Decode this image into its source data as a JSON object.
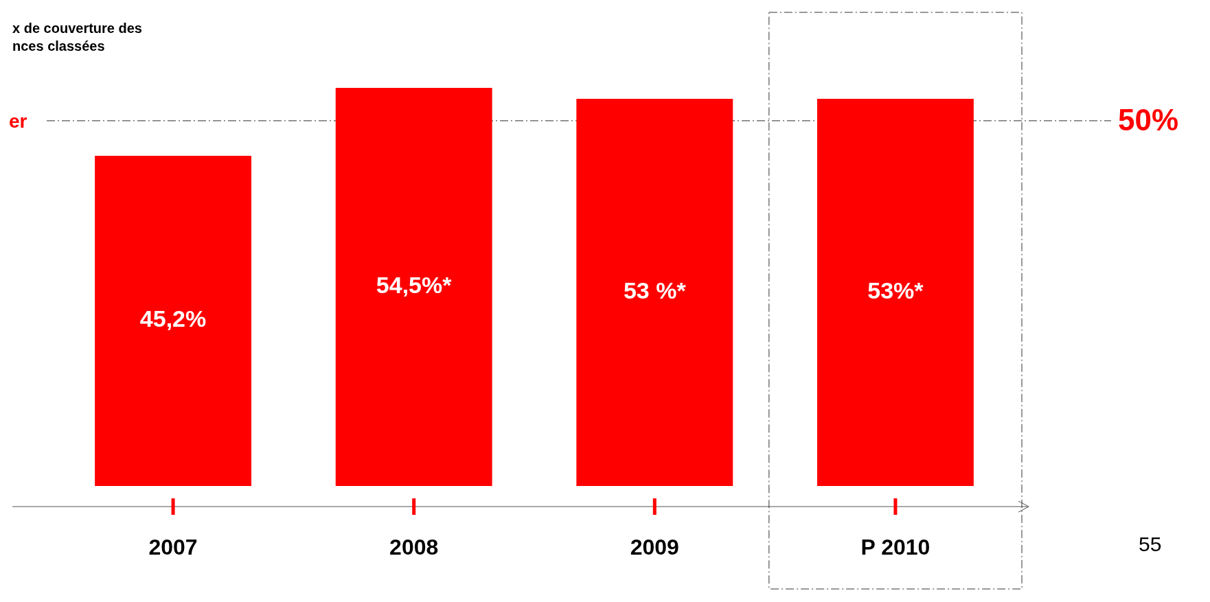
{
  "chart_data": {
    "type": "bar",
    "title": "x de couverture des\nnces classées",
    "categories": [
      "2007",
      "2008",
      "2009",
      "P 2010"
    ],
    "values": [
      45.2,
      54.5,
      53,
      53
    ],
    "color": "#ff0000",
    "value_labels": [
      "45,2%",
      "54,5%*",
      "53 %*",
      "53%*"
    ],
    "ref_lines": [
      {
        "axis": "y",
        "value": 50,
        "label": "50%",
        "color": "#555555",
        "line_style": "dashdot"
      }
    ],
    "annotations": [
      "er",
      "55"
    ],
    "tick_labels": "x"
  }
}
